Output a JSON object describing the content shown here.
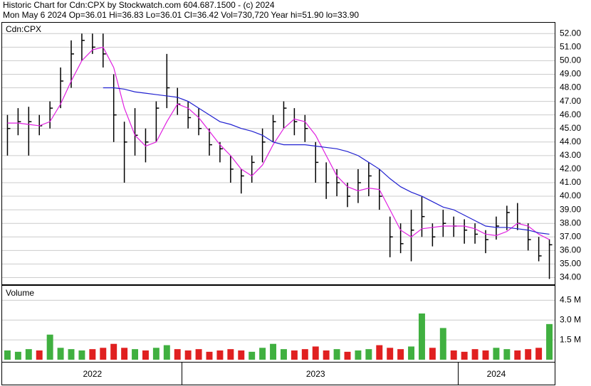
{
  "header": {
    "line1": "Historic Chart for Cdn:CPX by Stockwatch.com 604.687.1500 - (c) 2024",
    "line2": "Mon May  6 2024   Op=36.01   Hi=36.83   Lo=36.01   Cl=36.42   Vol=730,720   Year hi=51.90   lo=33.90"
  },
  "chart_data": {
    "type": "ohlc",
    "symbol_label": "Cdn:CPX",
    "volume_label": "Volume",
    "categories": [
      null,
      null,
      null,
      null,
      null,
      null,
      null,
      null,
      "2022",
      null,
      null,
      null,
      null,
      null,
      null,
      null,
      null,
      null,
      null,
      null,
      null,
      null,
      null,
      null,
      null,
      null,
      null,
      null,
      null,
      "2023",
      null,
      null,
      null,
      null,
      null,
      null,
      null,
      null,
      null,
      null,
      null,
      null,
      null,
      null,
      null,
      null,
      "2024",
      null,
      null,
      null,
      null,
      null
    ],
    "high": [
      46.0,
      46.5,
      46.6,
      46.0,
      47.0,
      49.5,
      51.5,
      52.0,
      52.0,
      52.0,
      49.0,
      45.5,
      46.5,
      45.0,
      47.0,
      50.5,
      48.0,
      47.0,
      46.5,
      45.0,
      44.0,
      43.0,
      42.0,
      43.0,
      45.0,
      46.0,
      47.0,
      46.5,
      46.0,
      44.0,
      42.5,
      42.0,
      41.0,
      42.0,
      42.5,
      42.0,
      38.5,
      38.0,
      39.0,
      40.0,
      38.0,
      39.0,
      38.5,
      38.3,
      38.0,
      37.5,
      38.5,
      39.3,
      39.5,
      38.0,
      37.0,
      36.83
    ],
    "low": [
      43.0,
      44.5,
      43.0,
      44.5,
      45.0,
      46.5,
      48.0,
      50.0,
      50.5,
      49.5,
      44.0,
      41.0,
      43.0,
      42.5,
      44.0,
      46.5,
      46.0,
      45.0,
      44.5,
      43.0,
      42.5,
      41.0,
      40.2,
      41.0,
      42.5,
      44.0,
      45.0,
      44.5,
      44.0,
      41.0,
      39.8,
      40.0,
      39.2,
      39.5,
      40.0,
      39.0,
      35.5,
      35.8,
      35.2,
      37.0,
      36.3,
      37.0,
      37.0,
      36.5,
      36.5,
      35.8,
      36.8,
      37.5,
      37.5,
      36.0,
      35.2,
      33.9
    ],
    "close": [
      45.0,
      45.5,
      45.5,
      45.2,
      46.5,
      48.5,
      50.5,
      51.5,
      51.0,
      50.5,
      46.0,
      44.0,
      44.5,
      44.0,
      46.5,
      48.0,
      46.8,
      45.8,
      45.0,
      43.8,
      43.5,
      42.0,
      41.5,
      42.5,
      44.0,
      45.5,
      46.5,
      45.5,
      45.0,
      42.5,
      41.0,
      41.0,
      40.0,
      41.0,
      41.5,
      40.0,
      37.0,
      36.5,
      37.5,
      38.5,
      37.0,
      38.0,
      37.8,
      37.5,
      37.2,
      36.8,
      37.8,
      38.8,
      38.0,
      36.8,
      35.6,
      36.42
    ],
    "series": [
      {
        "color": "#e020e0",
        "values": [
          45.4,
          45.4,
          45.3,
          45.2,
          45.5,
          46.8,
          48.5,
          50.0,
          50.8,
          51.0,
          49.5,
          46.5,
          44.5,
          43.7,
          44.0,
          45.5,
          46.8,
          46.5,
          45.8,
          44.8,
          43.8,
          43.0,
          42.0,
          41.5,
          42.3,
          43.8,
          45.0,
          45.7,
          45.5,
          44.5,
          43.0,
          41.5,
          40.7,
          40.4,
          40.6,
          40.5,
          39.0,
          37.5,
          37.0,
          37.6,
          37.7,
          37.8,
          37.8,
          37.8,
          37.6,
          37.2,
          37.1,
          37.4,
          38.0,
          37.8,
          37.2,
          36.8
        ]
      },
      {
        "color": "#2020d0",
        "values": [
          null,
          null,
          null,
          null,
          null,
          null,
          null,
          null,
          null,
          48.0,
          48.0,
          47.9,
          47.7,
          47.6,
          47.5,
          47.4,
          47.3,
          47.0,
          46.5,
          46.0,
          45.5,
          45.3,
          45.0,
          44.8,
          44.5,
          44.0,
          43.8,
          43.8,
          43.8,
          43.7,
          43.6,
          43.5,
          43.3,
          43.0,
          42.5,
          42.0,
          41.3,
          40.7,
          40.3,
          40.0,
          39.6,
          39.2,
          39.0,
          38.6,
          38.2,
          37.8,
          37.7,
          37.7,
          37.6,
          37.5,
          37.3,
          37.2
        ]
      }
    ],
    "volume": [
      0.7,
      0.6,
      0.8,
      0.7,
      1.9,
      0.9,
      0.8,
      0.7,
      0.8,
      0.9,
      1.2,
      0.9,
      0.8,
      0.7,
      0.9,
      1.1,
      0.8,
      0.7,
      0.8,
      0.6,
      0.7,
      0.8,
      0.7,
      0.6,
      0.9,
      1.2,
      0.8,
      0.7,
      0.8,
      1.0,
      0.7,
      0.8,
      0.6,
      0.7,
      0.8,
      1.1,
      0.9,
      0.8,
      1.0,
      3.5,
      0.9,
      2.4,
      0.7,
      0.6,
      0.8,
      0.7,
      0.9,
      0.8,
      0.7,
      0.8,
      0.9,
      2.7
    ],
    "up_color": "#40b040",
    "down_color": "#e02020",
    "ylim": [
      33.5,
      52.8
    ],
    "yticks": [
      {
        "value": 34,
        "label": "34.00"
      },
      {
        "value": 35,
        "label": "35.00"
      },
      {
        "value": 36,
        "label": "36.00"
      },
      {
        "value": 37,
        "label": "37.00"
      },
      {
        "value": 38,
        "label": "38.00"
      },
      {
        "value": 39,
        "label": "39.00"
      },
      {
        "value": 40,
        "label": "40.00"
      },
      {
        "value": 41,
        "label": "41.00"
      },
      {
        "value": 42,
        "label": "42.00"
      },
      {
        "value": 43,
        "label": "43.00"
      },
      {
        "value": 44,
        "label": "44.00"
      },
      {
        "value": 45,
        "label": "45.00"
      },
      {
        "value": 46,
        "label": "46.00"
      },
      {
        "value": 47,
        "label": "47.00"
      },
      {
        "value": 48,
        "label": "48.00"
      },
      {
        "value": 49,
        "label": "49.00"
      },
      {
        "value": 50,
        "label": "50.00"
      },
      {
        "value": 51,
        "label": "51.00"
      },
      {
        "value": 52,
        "label": "52.00"
      }
    ],
    "vlim": [
      0,
      5.6
    ],
    "vticks": [
      {
        "value": 1.5,
        "label": "1.5 M"
      },
      {
        "value": 3.0,
        "label": "3.0 M"
      },
      {
        "value": 4.5,
        "label": "4.5 M"
      }
    ],
    "grid": true
  }
}
